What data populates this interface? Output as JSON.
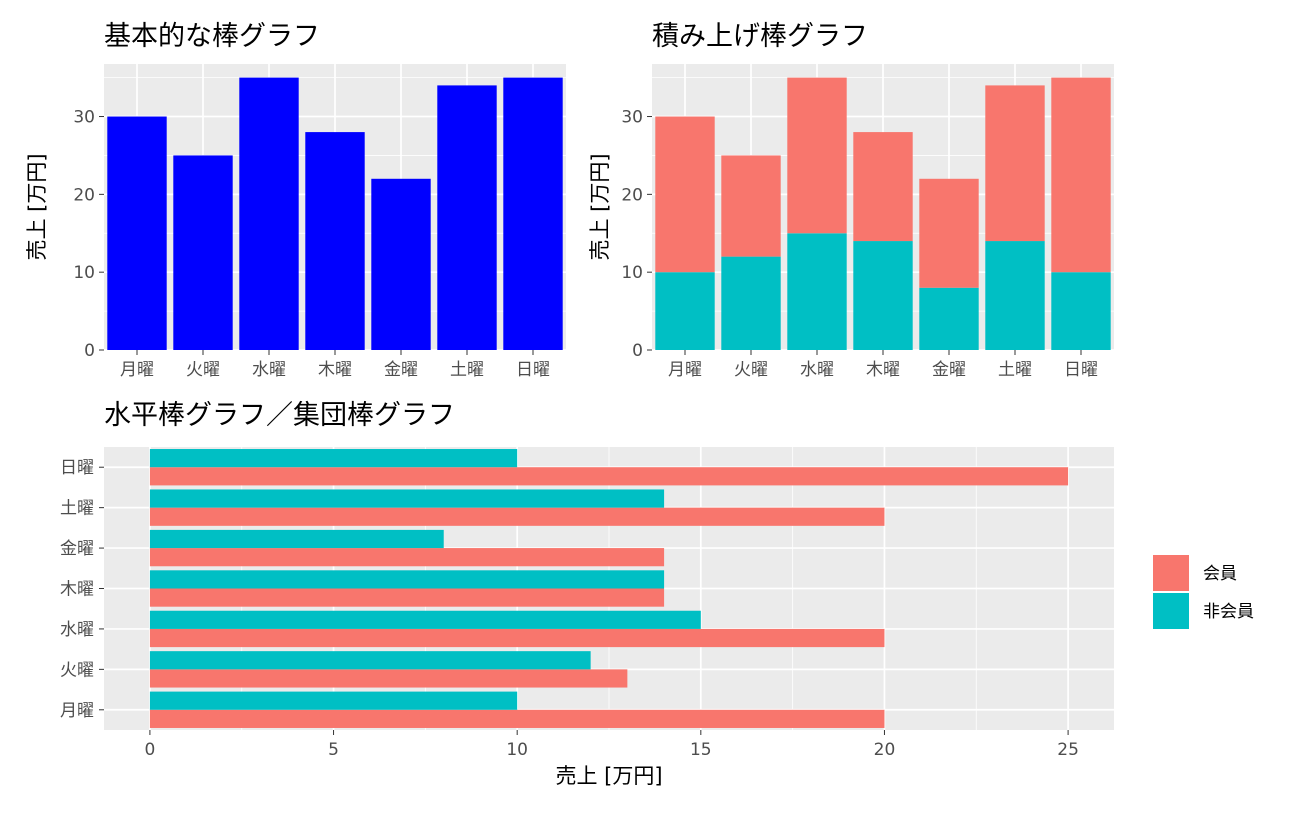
{
  "chart_data": [
    {
      "type": "bar",
      "title": "基本的な棒グラフ",
      "xlabel": "",
      "ylabel": "売上 [万円]",
      "categories": [
        "月曜",
        "火曜",
        "水曜",
        "木曜",
        "金曜",
        "土曜",
        "日曜"
      ],
      "values": [
        30,
        25,
        35,
        28,
        22,
        34,
        35
      ],
      "ylim": [
        0,
        36.75
      ],
      "yticks": [
        0,
        10,
        20,
        30
      ],
      "bar_color": "#0000ff",
      "grid": true
    },
    {
      "type": "bar",
      "stacked": true,
      "title": "積み上げ棒グラフ",
      "xlabel": "",
      "ylabel": "売上 [万円]",
      "categories": [
        "月曜",
        "火曜",
        "水曜",
        "木曜",
        "金曜",
        "土曜",
        "日曜"
      ],
      "series": [
        {
          "values": [
            10,
            12,
            15,
            14,
            8,
            14,
            10
          ],
          "color": "#00bfc4"
        },
        {
          "values": [
            20,
            13,
            20,
            14,
            14,
            20,
            25
          ],
          "color": "#f8766d"
        }
      ],
      "ylim": [
        0,
        36.75
      ],
      "yticks": [
        0,
        10,
        20,
        30
      ],
      "grid": true
    },
    {
      "type": "bar",
      "orientation": "horizontal",
      "grouped": true,
      "title": "水平棒グラフ／集団棒グラフ",
      "xlabel": "売上 [万円]",
      "ylabel": "",
      "categories": [
        "月曜",
        "火曜",
        "水曜",
        "木曜",
        "金曜",
        "土曜",
        "日曜"
      ],
      "series": [
        {
          "name": "会員",
          "values": [
            20,
            13,
            20,
            14,
            14,
            20,
            25
          ],
          "color": "#f8766d"
        },
        {
          "name": "非会員",
          "values": [
            10,
            12,
            15,
            14,
            8,
            14,
            10
          ],
          "color": "#00bfc4"
        }
      ],
      "xlim": [
        -1.25,
        26.25
      ],
      "xticks": [
        0,
        5,
        10,
        15,
        20,
        25
      ],
      "legend": "right",
      "grid": true
    }
  ]
}
